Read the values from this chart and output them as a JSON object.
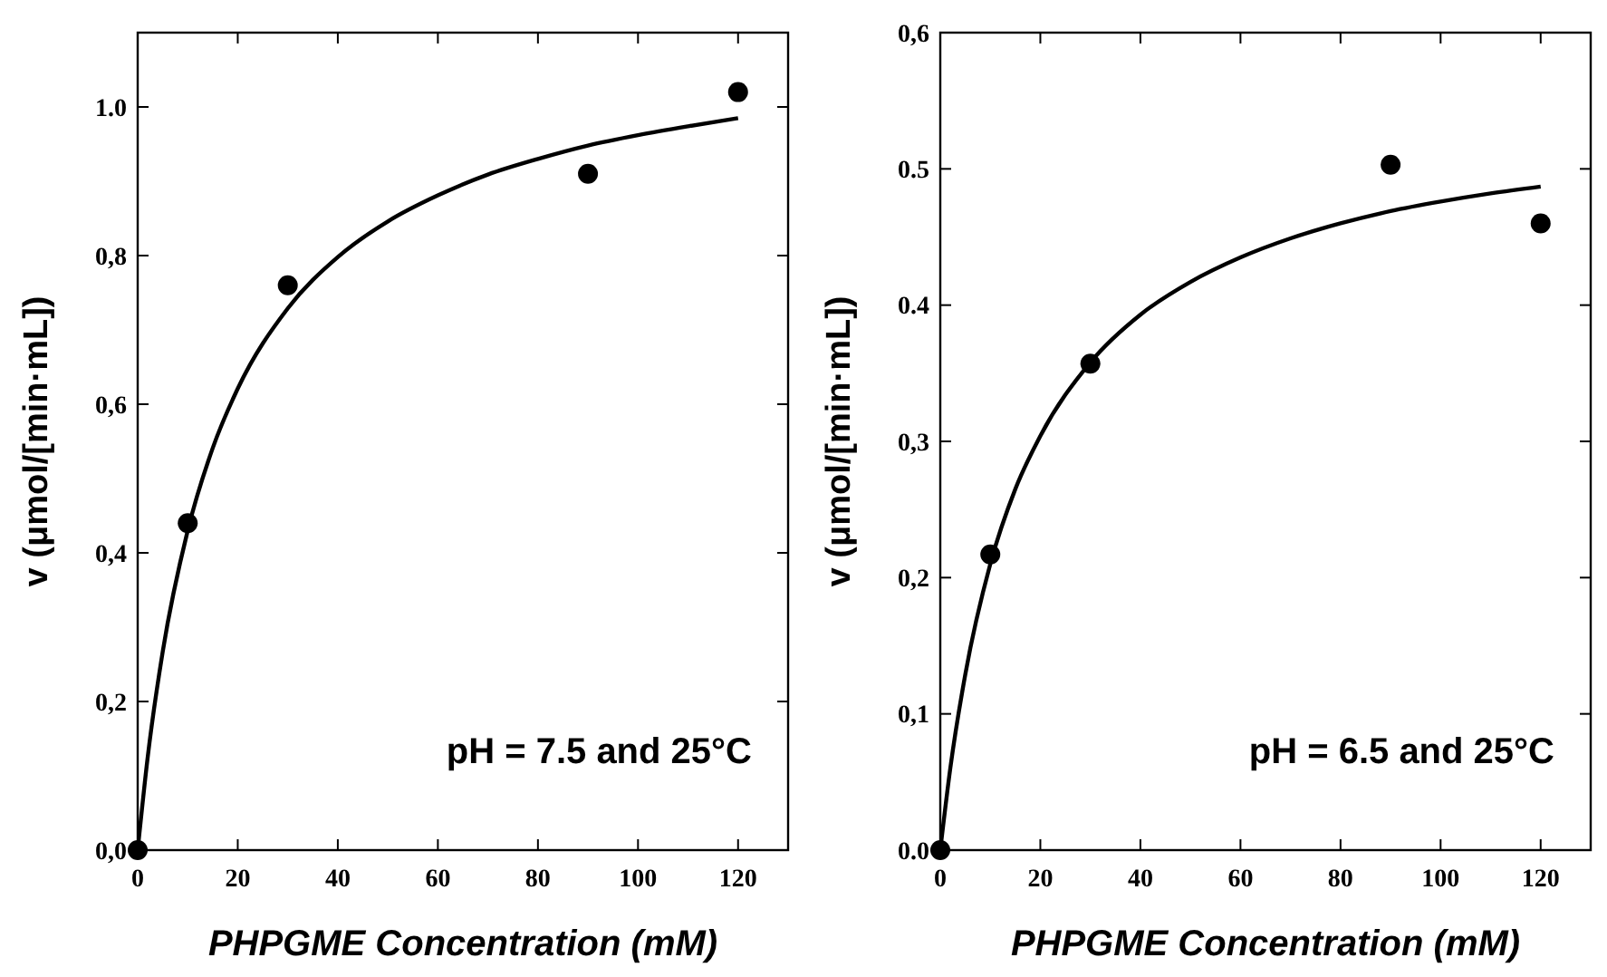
{
  "chart_data": [
    {
      "type": "scatter",
      "xlabel": "PHPGME Concentration (mM)",
      "ylabel": "v (μmol/[min·mL])",
      "annotations": [
        "pH = 7.5 and 25°C"
      ],
      "xlim": [
        0,
        130
      ],
      "xticks": [
        0,
        20,
        40,
        60,
        80,
        100,
        120
      ],
      "ylim": [
        0,
        1.1
      ],
      "yticks": [
        {
          "value": 0,
          "label": "0,0"
        },
        {
          "value": 0.2,
          "label": "0,2"
        },
        {
          "value": 0.4,
          "label": "0,4"
        },
        {
          "value": 0.6,
          "label": "0,6"
        },
        {
          "value": 0.8,
          "label": "0,8"
        },
        {
          "value": 1.0,
          "label": "1.0"
        }
      ],
      "grid": false,
      "series": [
        {
          "type": "scatter",
          "color": "#000000",
          "marker": "circle",
          "x": [
            0,
            10,
            30,
            90,
            120
          ],
          "values": [
            0,
            0.44,
            0.76,
            0.91,
            1.02
          ]
        },
        {
          "type": "line",
          "color": "#000000",
          "marker": "none",
          "line_style": "solid",
          "x": [
            0,
            2,
            5,
            10,
            15,
            20,
            30,
            40,
            50,
            60,
            70,
            80,
            90,
            100,
            110,
            120
          ],
          "values": [
            0,
            0.125,
            0.267,
            0.43,
            0.541,
            0.621,
            0.729,
            0.798,
            0.846,
            0.881,
            0.909,
            0.93,
            0.948,
            0.962,
            0.974,
            0.985
          ]
        }
      ]
    },
    {
      "type": "scatter",
      "xlabel": "PHPGME Concentration (mM)",
      "ylabel": "v (μmol/[min·mL])",
      "annotations": [
        "pH = 6.5 and 25°C"
      ],
      "xlim": [
        0,
        130
      ],
      "xticks": [
        0,
        20,
        40,
        60,
        80,
        100,
        120
      ],
      "ylim": [
        0,
        0.6
      ],
      "yticks": [
        {
          "value": 0,
          "label": "0.0"
        },
        {
          "value": 0.1,
          "label": "0,1"
        },
        {
          "value": 0.2,
          "label": "0,2"
        },
        {
          "value": 0.3,
          "label": "0,3"
        },
        {
          "value": 0.4,
          "label": "0.4"
        },
        {
          "value": 0.5,
          "label": "0.5"
        },
        {
          "value": 0.6,
          "label": "0,6"
        }
      ],
      "grid": false,
      "series": [
        {
          "type": "scatter",
          "color": "#000000",
          "marker": "circle",
          "x": [
            0,
            10,
            30,
            90,
            120
          ],
          "values": [
            0,
            0.217,
            0.357,
            0.503,
            0.46
          ]
        },
        {
          "type": "line",
          "color": "#000000",
          "marker": "none",
          "line_style": "solid",
          "x": [
            0,
            2,
            5,
            10,
            15,
            20,
            30,
            40,
            50,
            60,
            70,
            80,
            90,
            100,
            110,
            120
          ],
          "values": [
            0,
            0.06,
            0.129,
            0.21,
            0.265,
            0.304,
            0.358,
            0.393,
            0.417,
            0.435,
            0.449,
            0.46,
            0.469,
            0.476,
            0.482,
            0.487
          ]
        }
      ]
    }
  ]
}
